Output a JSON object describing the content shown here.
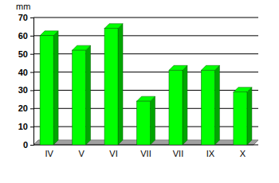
{
  "chart_data": {
    "type": "bar",
    "y_label": "mm",
    "categories": [
      "IV",
      "V",
      "VI",
      "VII",
      "VII",
      "IX",
      "X"
    ],
    "values": [
      60,
      52,
      64,
      24,
      41,
      41,
      29
    ],
    "color": "#00ff00",
    "ylim": [
      0,
      70
    ],
    "yticks": [
      0,
      10,
      20,
      30,
      40,
      50,
      60,
      70
    ],
    "grid": true
  }
}
